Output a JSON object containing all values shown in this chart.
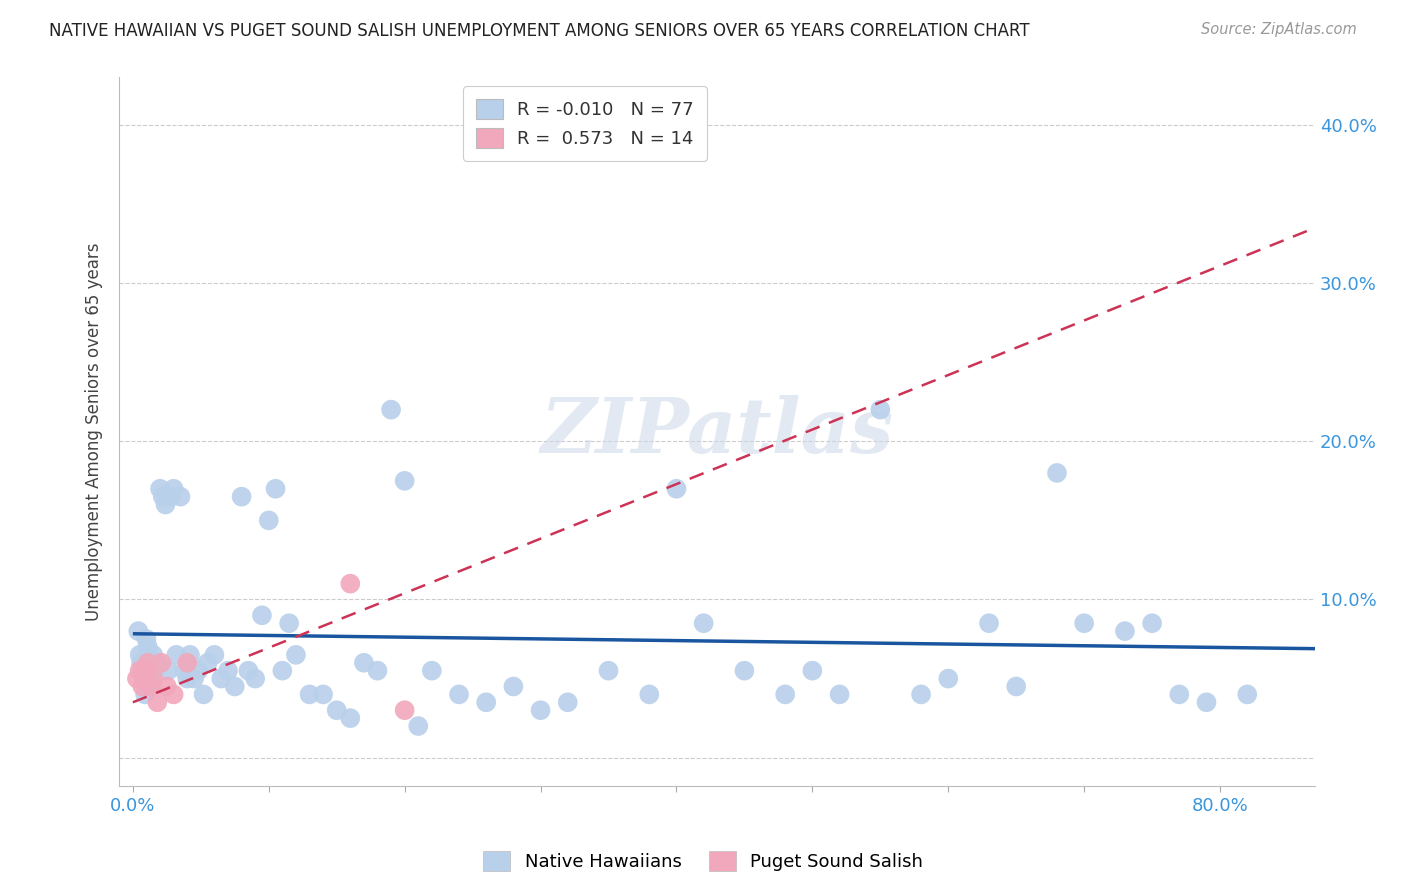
{
  "title": "NATIVE HAWAIIAN VS PUGET SOUND SALISH UNEMPLOYMENT AMONG SENIORS OVER 65 YEARS CORRELATION CHART",
  "source": "Source: ZipAtlas.com",
  "ylabel_label": "Unemployment Among Seniors over 65 years",
  "native_hawaiian_color": "#b8d0ea",
  "puget_sound_color": "#f2a8bc",
  "native_hawaiian_line_color": "#1a56a0",
  "puget_sound_line_color": "#cc3355",
  "background_color": "#ffffff",
  "watermark": "ZIPatlas",
  "watermark_color": "#ccd8e8",
  "R_nh": -0.01,
  "N_nh": 77,
  "R_ps": 0.573,
  "N_ps": 14,
  "xlim": [
    -0.01,
    0.87
  ],
  "ylim": [
    -0.018,
    0.43
  ],
  "xticks": [
    0.0,
    0.1,
    0.2,
    0.3,
    0.4,
    0.5,
    0.6,
    0.7,
    0.8
  ],
  "xlabels": [
    "0.0%",
    "",
    "",
    "",
    "",
    "",
    "",
    "",
    "80.0%"
  ],
  "yticks": [
    0.0,
    0.1,
    0.2,
    0.3,
    0.4
  ],
  "ylabels_right": [
    "",
    "10.0%",
    "20.0%",
    "30.0%",
    "40.0%"
  ],
  "native_hawaiian_x": [
    0.004,
    0.005,
    0.006,
    0.007,
    0.008,
    0.009,
    0.01,
    0.011,
    0.012,
    0.013,
    0.014,
    0.015,
    0.016,
    0.018,
    0.02,
    0.022,
    0.024,
    0.026,
    0.028,
    0.03,
    0.032,
    0.035,
    0.038,
    0.04,
    0.042,
    0.045,
    0.048,
    0.052,
    0.055,
    0.06,
    0.065,
    0.07,
    0.075,
    0.08,
    0.085,
    0.09,
    0.095,
    0.1,
    0.105,
    0.11,
    0.115,
    0.12,
    0.13,
    0.14,
    0.15,
    0.16,
    0.17,
    0.18,
    0.19,
    0.2,
    0.21,
    0.22,
    0.24,
    0.26,
    0.28,
    0.3,
    0.32,
    0.35,
    0.38,
    0.4,
    0.42,
    0.45,
    0.48,
    0.5,
    0.52,
    0.55,
    0.58,
    0.6,
    0.63,
    0.65,
    0.68,
    0.7,
    0.73,
    0.75,
    0.77,
    0.79,
    0.82
  ],
  "native_hawaiian_y": [
    0.08,
    0.065,
    0.06,
    0.055,
    0.05,
    0.04,
    0.075,
    0.07,
    0.05,
    0.045,
    0.06,
    0.065,
    0.055,
    0.06,
    0.17,
    0.165,
    0.16,
    0.055,
    0.165,
    0.17,
    0.065,
    0.165,
    0.055,
    0.05,
    0.065,
    0.05,
    0.055,
    0.04,
    0.06,
    0.065,
    0.05,
    0.055,
    0.045,
    0.165,
    0.055,
    0.05,
    0.09,
    0.15,
    0.17,
    0.055,
    0.085,
    0.065,
    0.04,
    0.04,
    0.03,
    0.025,
    0.06,
    0.055,
    0.22,
    0.175,
    0.02,
    0.055,
    0.04,
    0.035,
    0.045,
    0.03,
    0.035,
    0.055,
    0.04,
    0.17,
    0.085,
    0.055,
    0.04,
    0.055,
    0.04,
    0.22,
    0.04,
    0.05,
    0.085,
    0.045,
    0.18,
    0.085,
    0.08,
    0.085,
    0.04,
    0.035,
    0.04
  ],
  "puget_sound_x": [
    0.003,
    0.005,
    0.007,
    0.009,
    0.011,
    0.013,
    0.015,
    0.018,
    0.021,
    0.025,
    0.03,
    0.04,
    0.16,
    0.2
  ],
  "puget_sound_y": [
    0.05,
    0.055,
    0.045,
    0.055,
    0.06,
    0.045,
    0.05,
    0.035,
    0.06,
    0.045,
    0.04,
    0.06,
    0.11,
    0.03
  ],
  "ps_line_x0": 0.0,
  "ps_line_x1": 0.87,
  "ps_line_y0": 0.035,
  "ps_line_y1": 0.335
}
